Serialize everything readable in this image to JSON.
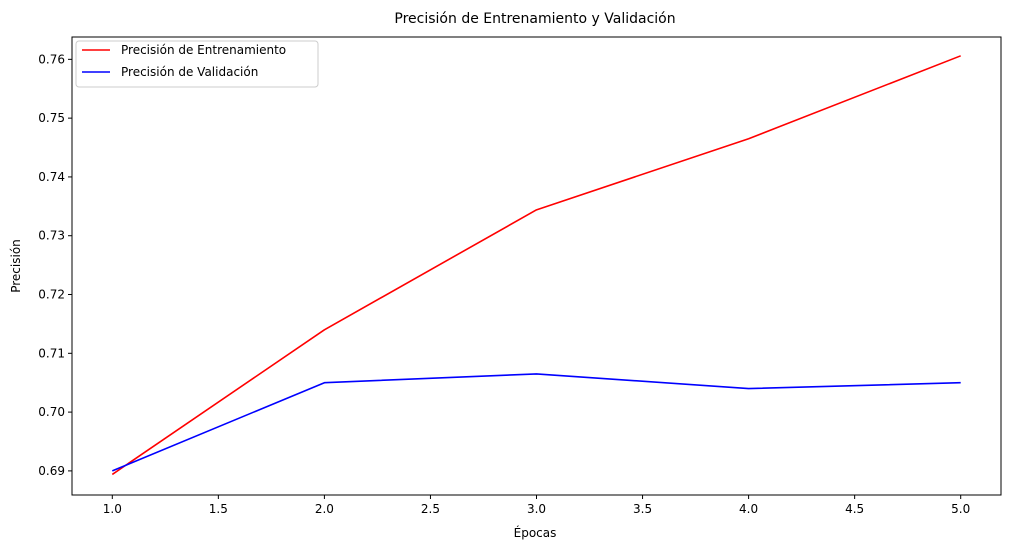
{
  "chart_data": {
    "type": "line",
    "title": "Precisión de Entrenamiento y Validación",
    "xlabel": "Épocas",
    "ylabel": "Precisión",
    "x": [
      1,
      2,
      3,
      4,
      5
    ],
    "xlim": [
      0.81,
      5.19
    ],
    "ylim": [
      0.6859,
      0.7638
    ],
    "x_ticks": [
      1.0,
      1.5,
      2.0,
      2.5,
      3.0,
      3.5,
      4.0,
      4.5,
      5.0
    ],
    "x_tick_labels": [
      "1.0",
      "1.5",
      "2.0",
      "2.5",
      "3.0",
      "3.5",
      "4.0",
      "4.5",
      "5.0"
    ],
    "y_ticks": [
      0.69,
      0.7,
      0.71,
      0.72,
      0.73,
      0.74,
      0.75,
      0.76
    ],
    "y_tick_labels": [
      "0.69",
      "0.70",
      "0.71",
      "0.72",
      "0.73",
      "0.74",
      "0.75",
      "0.76"
    ],
    "grid": false,
    "legend_position": "top-left",
    "series": [
      {
        "name": "Precisión de Entrenamiento",
        "color": "#ff0000",
        "values": [
          0.6894,
          0.714,
          0.7344,
          0.7465,
          0.7606
        ]
      },
      {
        "name": "Precisión de Validación",
        "color": "#0000ff",
        "values": [
          0.69,
          0.705,
          0.7065,
          0.704,
          0.705
        ]
      }
    ]
  }
}
